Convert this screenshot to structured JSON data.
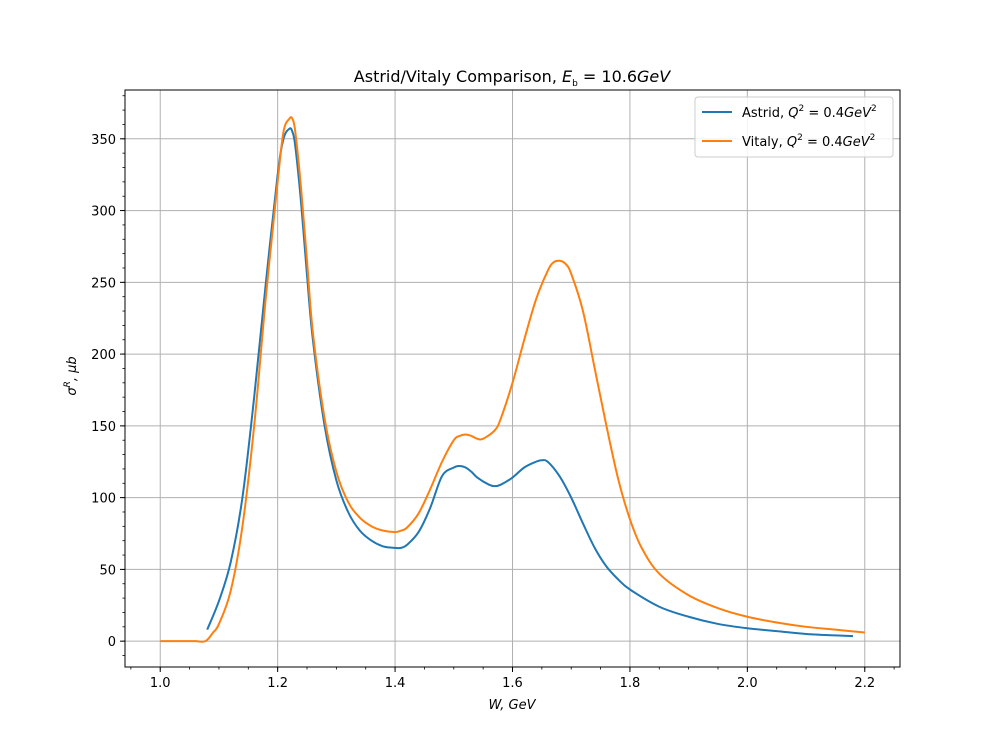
{
  "chart_data": {
    "type": "line",
    "title": "Astrid/Vitaly Comparison, ",
    "title_math": "E",
    "title_math_sub": "b",
    "title_math_rest": " = 10.6",
    "title_unit": "GeV",
    "xlabel": "W, GeV",
    "ylabel_sym": "σ",
    "ylabel_sup": "R",
    "ylabel_rest": ", μb",
    "xlim": [
      0.94,
      2.26
    ],
    "ylim": [
      -18,
      384
    ],
    "grid": true,
    "legend_position": "top-right",
    "x_ticks": [
      1.0,
      1.2,
      1.4,
      1.6,
      1.8,
      2.0,
      2.2
    ],
    "x_tick_labels": [
      "1.0",
      "1.2",
      "1.4",
      "1.6",
      "1.8",
      "2.0",
      "2.2"
    ],
    "y_ticks": [
      0,
      50,
      100,
      150,
      200,
      250,
      300,
      350
    ],
    "y_tick_labels": [
      "0",
      "50",
      "100",
      "150",
      "200",
      "250",
      "300",
      "350"
    ],
    "series": [
      {
        "name": "Astrid, ",
        "name_math": "Q",
        "name_sup": "2",
        "name_rest": " = 0.4",
        "name_unit": "GeV",
        "name_unit_sup": "2",
        "color": "#1f77b4",
        "x": [
          1.08,
          1.1,
          1.12,
          1.14,
          1.16,
          1.18,
          1.2,
          1.21,
          1.22,
          1.225,
          1.23,
          1.24,
          1.25,
          1.26,
          1.28,
          1.3,
          1.32,
          1.34,
          1.36,
          1.38,
          1.4,
          1.41,
          1.42,
          1.44,
          1.46,
          1.48,
          1.5,
          1.51,
          1.52,
          1.53,
          1.54,
          1.56,
          1.57,
          1.58,
          1.6,
          1.62,
          1.64,
          1.65,
          1.66,
          1.68,
          1.7,
          1.72,
          1.74,
          1.76,
          1.78,
          1.8,
          1.85,
          1.9,
          1.95,
          2.0,
          2.05,
          2.1,
          2.15,
          2.18
        ],
        "y": [
          8,
          28,
          55,
          100,
          170,
          250,
          325,
          350,
          357,
          355,
          345,
          305,
          255,
          210,
          150,
          112,
          90,
          77,
          70,
          66,
          65,
          65,
          67,
          76,
          93,
          115,
          121,
          122,
          121,
          118,
          114,
          109,
          108,
          109,
          114,
          121,
          125,
          126,
          125,
          115,
          100,
          82,
          65,
          52,
          43,
          36,
          24,
          17,
          12,
          9,
          7,
          5,
          4,
          3.5
        ]
      },
      {
        "name": "Vitaly, ",
        "name_math": "Q",
        "name_sup": "2",
        "name_rest": " = 0.4",
        "name_unit": "GeV",
        "name_unit_sup": "2",
        "color": "#ff7f0e",
        "x": [
          1.0,
          1.02,
          1.04,
          1.06,
          1.077,
          1.09,
          1.1,
          1.12,
          1.14,
          1.16,
          1.18,
          1.2,
          1.21,
          1.22,
          1.225,
          1.23,
          1.24,
          1.25,
          1.26,
          1.28,
          1.3,
          1.32,
          1.34,
          1.36,
          1.38,
          1.4,
          1.41,
          1.42,
          1.44,
          1.46,
          1.48,
          1.5,
          1.51,
          1.52,
          1.53,
          1.54,
          1.55,
          1.57,
          1.58,
          1.6,
          1.62,
          1.64,
          1.66,
          1.67,
          1.68,
          1.69,
          1.7,
          1.72,
          1.74,
          1.76,
          1.78,
          1.8,
          1.82,
          1.85,
          1.9,
          1.95,
          2.0,
          2.05,
          2.1,
          2.15,
          2.2
        ],
        "y": [
          0,
          0,
          0,
          0,
          0,
          6,
          12,
          35,
          80,
          150,
          240,
          320,
          355,
          364,
          364,
          355,
          315,
          265,
          215,
          155,
          118,
          97,
          86,
          80,
          77,
          76,
          77,
          79,
          89,
          106,
          125,
          140,
          143,
          144,
          143,
          141,
          141,
          147,
          155,
          180,
          210,
          238,
          258,
          264,
          265,
          263,
          256,
          230,
          190,
          150,
          113,
          85,
          65,
          47,
          32,
          23,
          17,
          13,
          10,
          8,
          6
        ]
      }
    ]
  }
}
